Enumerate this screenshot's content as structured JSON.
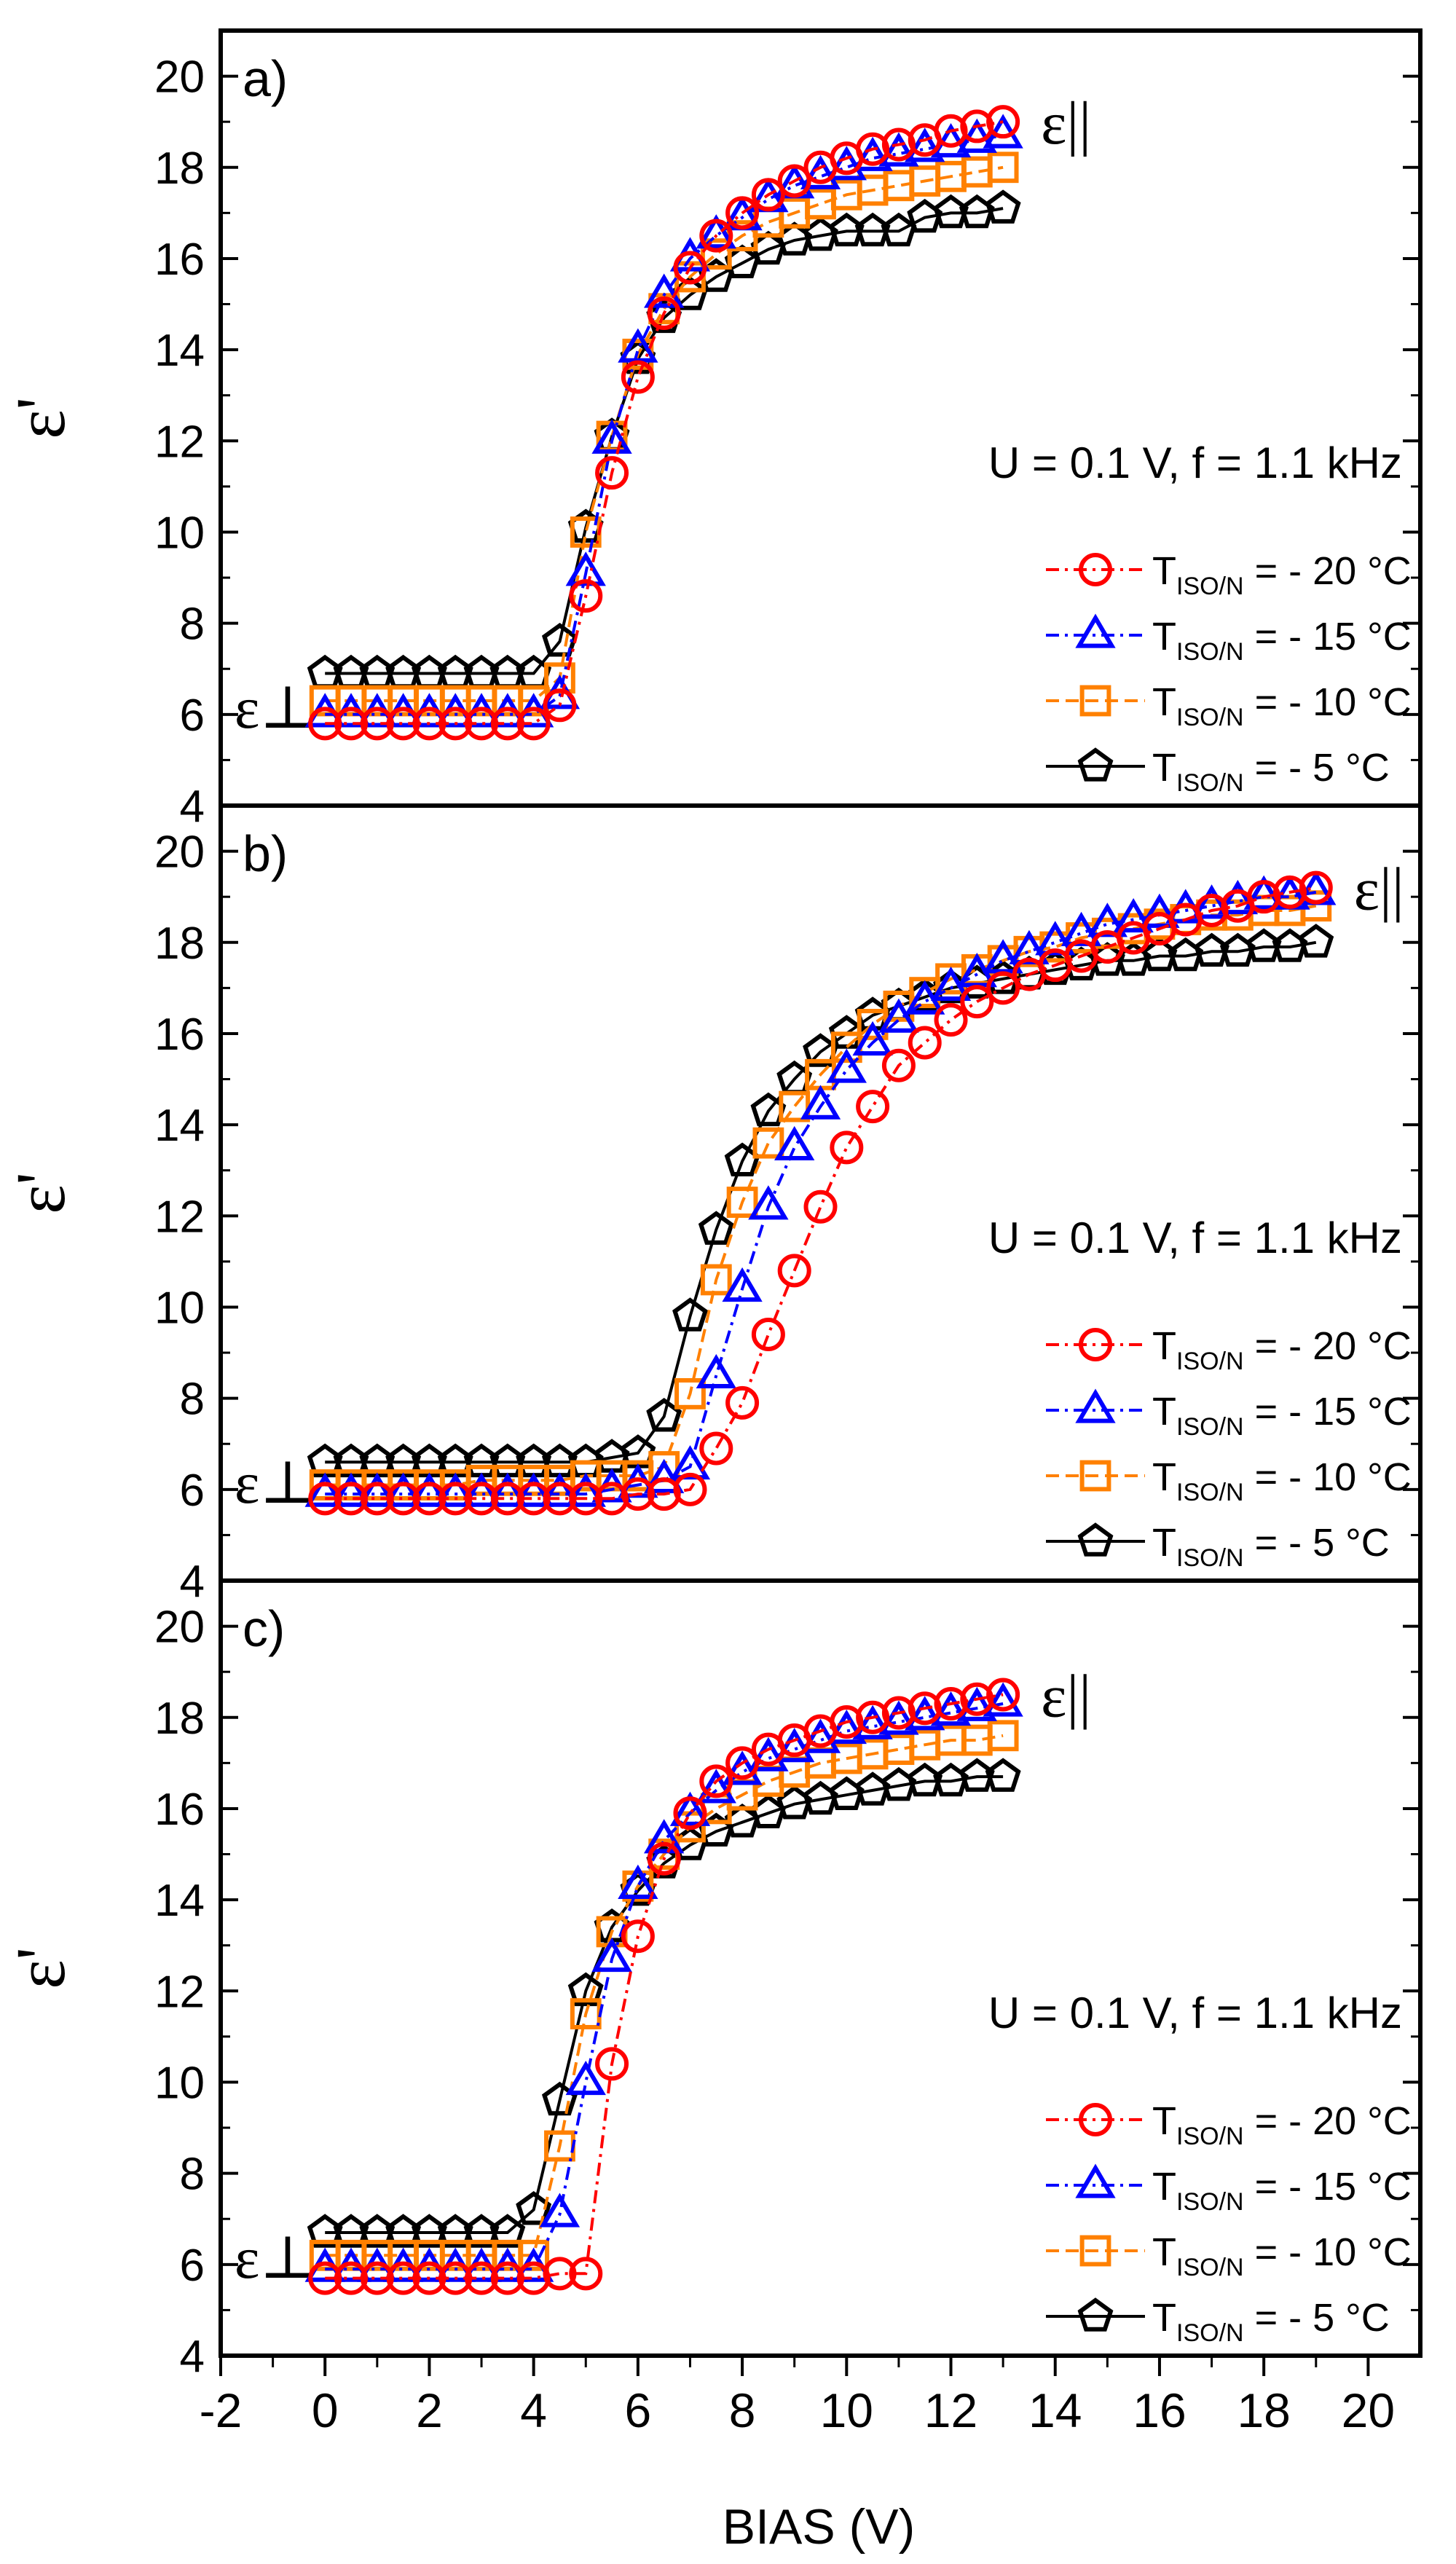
{
  "figure": {
    "xlabel": "BIAS (V)",
    "ylabel": "ε'",
    "xlim": [
      -2,
      21
    ],
    "xticks": [
      -2,
      0,
      2,
      4,
      6,
      8,
      10,
      12,
      14,
      16,
      18,
      20
    ],
    "ylim": [
      4,
      21
    ],
    "yticks": [
      4,
      6,
      8,
      10,
      12,
      14,
      16,
      18,
      20
    ],
    "conditions": "U = 0.1 V, f = 1.1 kHz",
    "eps_perp_label": "ε⊥",
    "eps_par_label": "ε||",
    "legend": [
      {
        "prefix": "T",
        "sub": "ISO/N",
        "suffix": " = - 20 °C",
        "marker": "circle",
        "color": "#ff0000",
        "dash": "dash-dot"
      },
      {
        "prefix": "T",
        "sub": "ISO/N",
        "suffix": " = - 15 °C",
        "marker": "triangle",
        "color": "#0000ff",
        "dash": "dash-dot"
      },
      {
        "prefix": "T",
        "sub": "ISO/N",
        "suffix": " = - 10 °C",
        "marker": "square",
        "color": "#ff8000",
        "dash": "dash"
      },
      {
        "prefix": "T",
        "sub": "ISO/N",
        "suffix": " = - 5 °C",
        "marker": "pentagon",
        "color": "#000000",
        "dash": "solid"
      }
    ]
  },
  "chart_data": [
    {
      "type": "line",
      "panel_label": "a)",
      "x": [
        0,
        0.5,
        1,
        1.5,
        2,
        2.5,
        3,
        3.5,
        4,
        4.5,
        5,
        5.5,
        6,
        6.5,
        7,
        7.5,
        8,
        8.5,
        9,
        9.5,
        10,
        10.5,
        11,
        11.5,
        12,
        12.5,
        13
      ],
      "series": [
        {
          "name": "TISO/N = - 20 °C",
          "values": [
            5.8,
            5.8,
            5.8,
            5.8,
            5.8,
            5.8,
            5.8,
            5.8,
            5.8,
            6.2,
            8.6,
            11.3,
            13.4,
            14.8,
            15.8,
            16.5,
            17.0,
            17.4,
            17.7,
            18.0,
            18.2,
            18.4,
            18.5,
            18.6,
            18.8,
            18.9,
            19.0
          ]
        },
        {
          "name": "TISO/N = - 15 °C",
          "values": [
            6.0,
            6.0,
            6.0,
            6.0,
            6.0,
            6.0,
            6.0,
            6.0,
            6.0,
            6.4,
            9.1,
            12.0,
            14.0,
            15.2,
            16.0,
            16.5,
            16.9,
            17.3,
            17.6,
            17.8,
            18.0,
            18.2,
            18.3,
            18.4,
            18.5,
            18.6,
            18.7
          ]
        },
        {
          "name": "TISO/N = - 10 °C",
          "values": [
            6.3,
            6.3,
            6.3,
            6.3,
            6.3,
            6.3,
            6.3,
            6.3,
            6.3,
            6.8,
            10.0,
            12.1,
            13.9,
            14.9,
            15.6,
            16.1,
            16.5,
            16.8,
            17.0,
            17.2,
            17.4,
            17.5,
            17.6,
            17.7,
            17.8,
            17.9,
            18.0
          ]
        },
        {
          "name": "TISO/N = - 5 °C",
          "values": [
            6.9,
            6.9,
            6.9,
            6.9,
            6.9,
            6.9,
            6.9,
            6.9,
            6.9,
            7.6,
            10.1,
            12.1,
            13.8,
            14.7,
            15.2,
            15.6,
            15.9,
            16.2,
            16.4,
            16.5,
            16.6,
            16.6,
            16.6,
            16.9,
            17.0,
            17.0,
            17.1
          ]
        }
      ]
    },
    {
      "type": "line",
      "panel_label": "b)",
      "x": [
        0,
        0.5,
        1,
        1.5,
        2,
        2.5,
        3,
        3.5,
        4,
        4.5,
        5,
        5.5,
        6,
        6.5,
        7,
        7.5,
        8,
        8.5,
        9,
        9.5,
        10,
        10.5,
        11,
        11.5,
        12,
        12.5,
        13,
        13.5,
        14,
        14.5,
        15,
        15.5,
        16,
        16.5,
        17,
        17.5,
        18,
        18.5,
        19
      ],
      "series": [
        {
          "name": "TISO/N = - 20 °C",
          "values": [
            5.8,
            5.8,
            5.8,
            5.8,
            5.8,
            5.8,
            5.8,
            5.8,
            5.8,
            5.8,
            5.8,
            5.8,
            5.9,
            5.9,
            6.0,
            6.9,
            7.9,
            9.4,
            10.8,
            12.2,
            13.5,
            14.4,
            15.3,
            15.8,
            16.3,
            16.7,
            17.0,
            17.3,
            17.5,
            17.7,
            17.9,
            18.1,
            18.3,
            18.5,
            18.7,
            18.8,
            19.0,
            19.1,
            19.2
          ]
        },
        {
          "name": "TISO/N = - 15 °C",
          "values": [
            5.9,
            5.9,
            5.9,
            5.9,
            5.9,
            5.9,
            5.9,
            5.9,
            5.9,
            5.9,
            5.9,
            6.0,
            6.1,
            6.2,
            6.5,
            8.5,
            10.4,
            12.2,
            13.5,
            14.4,
            15.2,
            15.8,
            16.3,
            16.7,
            17.0,
            17.3,
            17.6,
            17.8,
            18.0,
            18.2,
            18.4,
            18.5,
            18.6,
            18.7,
            18.8,
            18.9,
            19.0,
            19.0,
            19.1
          ]
        },
        {
          "name": "TISO/N = - 10 °C",
          "values": [
            6.1,
            6.1,
            6.1,
            6.1,
            6.1,
            6.1,
            6.2,
            6.2,
            6.2,
            6.2,
            6.3,
            6.3,
            6.3,
            6.5,
            8.1,
            10.6,
            12.3,
            13.6,
            14.4,
            15.1,
            15.7,
            16.2,
            16.6,
            16.9,
            17.2,
            17.4,
            17.6,
            17.8,
            17.9,
            18.1,
            18.2,
            18.3,
            18.4,
            18.5,
            18.6,
            18.6,
            18.7,
            18.7,
            18.8
          ]
        },
        {
          "name": "TISO/N = - 5 °C",
          "values": [
            6.6,
            6.6,
            6.6,
            6.6,
            6.6,
            6.6,
            6.6,
            6.6,
            6.6,
            6.6,
            6.6,
            6.7,
            6.8,
            7.6,
            9.8,
            11.7,
            13.2,
            14.3,
            15.0,
            15.6,
            16.0,
            16.4,
            16.6,
            16.8,
            17.0,
            17.1,
            17.2,
            17.3,
            17.4,
            17.5,
            17.6,
            17.6,
            17.7,
            17.7,
            17.8,
            17.8,
            17.9,
            17.9,
            18.0
          ]
        }
      ]
    },
    {
      "type": "line",
      "panel_label": "c)",
      "x": [
        0,
        0.5,
        1,
        1.5,
        2,
        2.5,
        3,
        3.5,
        4,
        4.5,
        5,
        5.5,
        6,
        6.5,
        7,
        7.5,
        8,
        8.5,
        9,
        9.5,
        10,
        10.5,
        11,
        11.5,
        12,
        12.5,
        13
      ],
      "series": [
        {
          "name": "TISO/N = - 20 °C",
          "values": [
            5.7,
            5.7,
            5.7,
            5.7,
            5.7,
            5.7,
            5.7,
            5.7,
            5.7,
            5.8,
            5.8,
            10.4,
            13.2,
            14.9,
            15.9,
            16.6,
            17.0,
            17.3,
            17.5,
            17.7,
            17.9,
            18.0,
            18.1,
            18.2,
            18.3,
            18.4,
            18.5
          ]
        },
        {
          "name": "TISO/N = - 15 °C",
          "values": [
            5.9,
            5.9,
            5.9,
            5.9,
            5.9,
            5.9,
            5.9,
            5.9,
            5.9,
            7.1,
            10.0,
            12.7,
            14.3,
            15.3,
            15.9,
            16.4,
            16.8,
            17.1,
            17.3,
            17.5,
            17.7,
            17.8,
            17.9,
            18.0,
            18.1,
            18.2,
            18.3
          ]
        },
        {
          "name": "TISO/N = - 10 °C",
          "values": [
            6.2,
            6.2,
            6.2,
            6.2,
            6.2,
            6.2,
            6.2,
            6.2,
            6.2,
            8.6,
            11.5,
            13.3,
            14.3,
            15.0,
            15.6,
            16.0,
            16.3,
            16.6,
            16.8,
            17.0,
            17.1,
            17.2,
            17.3,
            17.4,
            17.5,
            17.5,
            17.6
          ]
        },
        {
          "name": "TISO/N = - 5 °C",
          "values": [
            6.7,
            6.7,
            6.7,
            6.7,
            6.7,
            6.7,
            6.7,
            6.7,
            7.2,
            9.6,
            12.0,
            13.4,
            14.2,
            14.8,
            15.2,
            15.5,
            15.7,
            15.9,
            16.1,
            16.2,
            16.3,
            16.4,
            16.5,
            16.6,
            16.6,
            16.7,
            16.7
          ]
        }
      ]
    }
  ]
}
